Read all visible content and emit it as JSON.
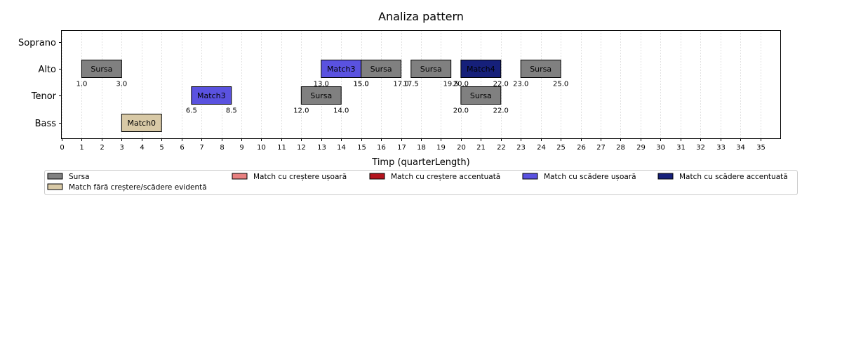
{
  "chart_data": {
    "type": "timeline",
    "title": "Analiza pattern",
    "xlabel": "Timp (quarterLength)",
    "ylabel": "",
    "xlim": [
      0,
      36
    ],
    "x_ticks": [
      0,
      1,
      2,
      3,
      4,
      5,
      6,
      7,
      8,
      9,
      10,
      11,
      12,
      13,
      14,
      15,
      16,
      17,
      18,
      19,
      20,
      21,
      22,
      23,
      24,
      25,
      26,
      27,
      28,
      29,
      30,
      31,
      32,
      33,
      34,
      35
    ],
    "voices": [
      "Soprano",
      "Alto",
      "Tenor",
      "Bass"
    ],
    "grid": "vertical dashed",
    "colors": {
      "Sursa": "#808080",
      "Match fără creștere/scădere evidentă": "#d8c9a6",
      "Match cu creștere ușoară": "#e88080",
      "Match cu creștere accentuată": "#b3131d",
      "Match cu scădere ușoară": "#5a52e0",
      "Match cu scădere accentuată": "#16207a"
    },
    "segments": [
      {
        "voice": "Alto",
        "start": 1.0,
        "end": 3.0,
        "label": "Sursa",
        "category": "Sursa",
        "start_label": "1.0",
        "end_label": "3.0"
      },
      {
        "voice": "Alto",
        "start": 13.0,
        "end": 15.0,
        "label": "Match3",
        "category": "Match cu scădere ușoară",
        "start_label": "13.0",
        "end_label": "15.0"
      },
      {
        "voice": "Alto",
        "start": 15.0,
        "end": 17.0,
        "label": "Sursa",
        "category": "Sursa",
        "start_label": "15.0",
        "end_label": "17.0"
      },
      {
        "voice": "Alto",
        "start": 17.5,
        "end": 19.5,
        "label": "Sursa",
        "category": "Sursa",
        "start_label": "17.5",
        "end_label": "19.5"
      },
      {
        "voice": "Alto",
        "start": 20.0,
        "end": 22.0,
        "label": "Match4",
        "category": "Match cu scădere accentuată",
        "start_label": "20.0",
        "end_label": "22.0"
      },
      {
        "voice": "Alto",
        "start": 23.0,
        "end": 25.0,
        "label": "Sursa",
        "category": "Sursa",
        "start_label": "23.0",
        "end_label": "25.0"
      },
      {
        "voice": "Tenor",
        "start": 6.5,
        "end": 8.5,
        "label": "Match3",
        "category": "Match cu scădere ușoară",
        "start_label": "6.5",
        "end_label": "8.5"
      },
      {
        "voice": "Tenor",
        "start": 12.0,
        "end": 14.0,
        "label": "Sursa",
        "category": "Sursa",
        "start_label": "12.0",
        "end_label": "14.0"
      },
      {
        "voice": "Tenor",
        "start": 20.0,
        "end": 22.0,
        "label": "Sursa",
        "category": "Sursa",
        "start_label": "20.0",
        "end_label": "22.0"
      },
      {
        "voice": "Bass",
        "start": 3.0,
        "end": 5.0,
        "label": "Match0",
        "category": "Match fără creștere/scădere evidentă",
        "start_label": "",
        "end_label": ""
      }
    ],
    "legend": {
      "placement": "below",
      "entries": [
        "Sursa",
        "Match fără creștere/scădere evidentă",
        "Match cu creștere ușoară",
        "Match cu creștere accentuată",
        "Match cu scădere ușoară",
        "Match cu scădere accentuată"
      ]
    }
  }
}
